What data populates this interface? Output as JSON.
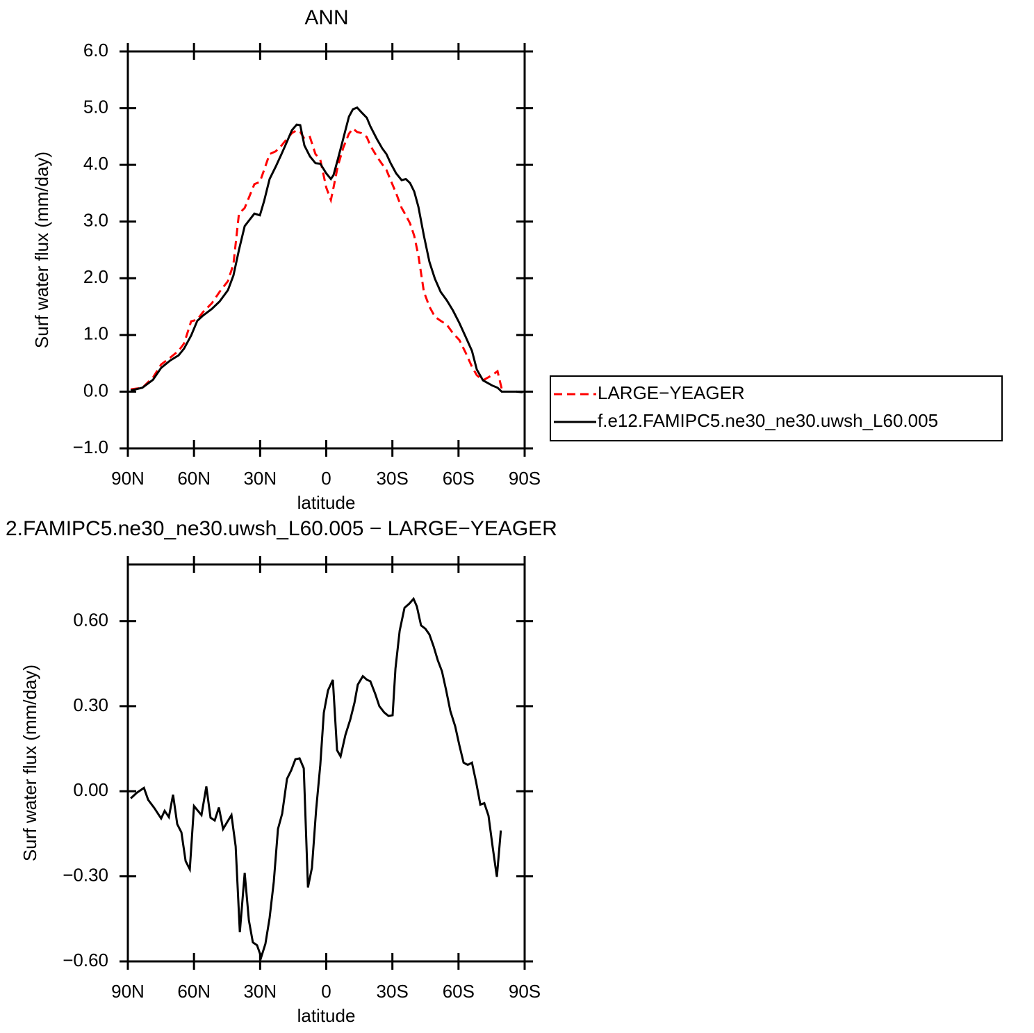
{
  "chart_data": [
    {
      "type": "line",
      "title": "ANN",
      "xlabel": "latitude",
      "ylabel": "Surf water flux (mm/day)",
      "legend": "right",
      "x": [
        88.7,
        83.4,
        78.6,
        74.9,
        70.8,
        67.0,
        64.5,
        61.3,
        58.5,
        56.0,
        51.9,
        48.4,
        44.6,
        42.1,
        39.6,
        37.0,
        32.6,
        30.1,
        28.2,
        25.7,
        22.9,
        20.3,
        17.8,
        15.6,
        13.4,
        11.8,
        9.9,
        7.4,
        4.9,
        2.7,
        0,
        -2.1,
        -3.3,
        -5.2,
        -7.7,
        -10.3,
        -12.1,
        -14.0,
        -15.9,
        -18.4,
        -20.0,
        -22.9,
        -25.4,
        -27.3,
        -29.2,
        -31.7,
        -34.2,
        -36.1,
        -38.0,
        -39.9,
        -41.8,
        -44.3,
        -46.8,
        -49.3,
        -51.9,
        -54.7,
        -57.5,
        -60.4,
        -63.2,
        -66.1,
        -68.3,
        -71.1,
        -75.2,
        -77.7,
        -79.6,
        -82.8,
        -86.2,
        -89.1
      ],
      "series": [
        {
          "name": "LARGE−YEAGER",
          "color": "#ff0000",
          "dashed": true,
          "values": [
            0.04,
            0.07,
            0.25,
            0.48,
            0.6,
            0.72,
            0.85,
            1.24,
            1.27,
            1.4,
            1.56,
            1.76,
            1.95,
            2.25,
            3.14,
            3.24,
            3.66,
            3.7,
            3.91,
            4.19,
            4.24,
            4.34,
            4.46,
            4.56,
            4.61,
            4.58,
            4.46,
            4.49,
            4.19,
            4.09,
            3.6,
            3.38,
            3.6,
            3.97,
            4.3,
            4.55,
            4.64,
            4.58,
            4.56,
            4.49,
            4.34,
            4.15,
            4.01,
            3.91,
            3.73,
            3.5,
            3.24,
            3.11,
            2.97,
            2.75,
            2.4,
            1.76,
            1.5,
            1.32,
            1.25,
            1.18,
            1.03,
            0.91,
            0.69,
            0.44,
            0.29,
            0.2,
            0.29,
            0.36,
            0.05,
            null,
            null,
            null
          ]
        },
        {
          "name": "f.e12.FAMIPC5.ne30_ne30.uwsh_L60.005",
          "color": "#000000",
          "dashed": false,
          "values": [
            0.02,
            0.07,
            0.21,
            0.42,
            0.55,
            0.64,
            0.76,
            0.99,
            1.25,
            1.34,
            1.46,
            1.59,
            1.79,
            2.05,
            2.5,
            2.92,
            3.14,
            3.11,
            3.36,
            3.75,
            3.97,
            4.19,
            4.41,
            4.61,
            4.71,
            4.7,
            4.34,
            4.15,
            4.03,
            4.02,
            3.85,
            3.75,
            3.82,
            4.09,
            4.46,
            4.85,
            4.98,
            5.01,
            4.93,
            4.83,
            4.68,
            4.46,
            4.29,
            4.19,
            4.03,
            3.85,
            3.73,
            3.75,
            3.68,
            3.53,
            3.26,
            2.75,
            2.29,
            1.99,
            1.76,
            1.61,
            1.43,
            1.21,
            0.97,
            0.72,
            0.39,
            0.2,
            0.11,
            0.07,
            0.0,
            0.0,
            0.0,
            -0.01
          ]
        }
      ],
      "xlim": [
        90,
        -90
      ],
      "xticks": [
        {
          "value": 90,
          "label": "90N"
        },
        {
          "value": 60,
          "label": "60N"
        },
        {
          "value": 30,
          "label": "30N"
        },
        0,
        {
          "value": -30,
          "label": "30S"
        },
        {
          "value": -60,
          "label": "60S"
        },
        {
          "value": -90,
          "label": "90S"
        }
      ],
      "ylim": [
        -1,
        6
      ],
      "yticks": [
        {
          "value": -1,
          "label": "−1.0"
        },
        {
          "value": 0,
          "label": "0.0"
        },
        {
          "value": 1,
          "label": "1.0"
        },
        {
          "value": 2,
          "label": "2.0"
        },
        {
          "value": 3,
          "label": "3.0"
        },
        {
          "value": 4,
          "label": "4.0"
        },
        {
          "value": 5,
          "label": "5.0"
        },
        {
          "value": 6,
          "label": "6.0"
        }
      ]
    },
    {
      "type": "line",
      "title": "2.FAMIPC5.ne30_ne30.uwsh_L60.005 − LARGE−YEAGER",
      "xlabel": "latitude",
      "ylabel": "Surf water flux (mm/day)",
      "color": "#000000",
      "x": [
        88.7,
        85.9,
        82.7,
        80.8,
        78.0,
        74.9,
        73.3,
        71.4,
        69.5,
        67.6,
        65.7,
        63.8,
        61.9,
        60.0,
        56.6,
        54.4,
        52.5,
        50.6,
        48.7,
        46.8,
        44.9,
        43.0,
        41.1,
        39.2,
        37.0,
        35.1,
        33.3,
        31.4,
        29.5,
        27.6,
        25.7,
        23.8,
        21.9,
        20.0,
        17.8,
        15.9,
        14.0,
        12.1,
        10.2,
        8.3,
        6.5,
        4.6,
        2.7,
        1.1,
        -0.8,
        -3.0,
        -4.9,
        -6.5,
        -8.7,
        -10.9,
        -12.8,
        -14.3,
        -16.6,
        -18.5,
        -20.0,
        -22.2,
        -24.1,
        -26.3,
        -28.2,
        -30.1,
        -31.4,
        -33.3,
        -35.5,
        -37.7,
        -39.6,
        -41.1,
        -43.0,
        -45.0,
        -46.8,
        -48.7,
        -50.6,
        -52.5,
        -54.4,
        -56.3,
        -58.5,
        -60.4,
        -62.3,
        -64.2,
        -66.1,
        -68.0,
        -69.9,
        -71.7,
        -73.6,
        -75.5,
        -77.4,
        -79.2
      ],
      "values": [
        -0.025,
        -0.005,
        0.012,
        -0.03,
        -0.059,
        -0.096,
        -0.069,
        -0.091,
        -0.012,
        -0.116,
        -0.145,
        -0.246,
        -0.275,
        -0.052,
        -0.084,
        0.017,
        -0.093,
        -0.103,
        -0.057,
        -0.133,
        -0.108,
        -0.084,
        -0.194,
        -0.497,
        -0.288,
        -0.455,
        -0.533,
        -0.543,
        -0.585,
        -0.538,
        -0.447,
        -0.319,
        -0.133,
        -0.079,
        0.044,
        0.074,
        0.113,
        0.116,
        0.081,
        -0.339,
        -0.27,
        -0.066,
        0.093,
        0.277,
        0.356,
        0.393,
        0.145,
        0.123,
        0.199,
        0.253,
        0.312,
        0.376,
        0.406,
        0.393,
        0.388,
        0.344,
        0.3,
        0.278,
        0.266,
        0.268,
        0.433,
        0.566,
        0.647,
        0.662,
        0.679,
        0.652,
        0.585,
        0.573,
        0.553,
        0.511,
        0.462,
        0.423,
        0.356,
        0.283,
        0.229,
        0.162,
        0.101,
        0.093,
        0.101,
        0.032,
        -0.047,
        -0.042,
        -0.086,
        -0.197,
        -0.302,
        -0.138
      ],
      "xlim": [
        90,
        -90
      ],
      "xticks": [
        {
          "value": 90,
          "label": "90N"
        },
        {
          "value": 60,
          "label": "60N"
        },
        {
          "value": 30,
          "label": "30N"
        },
        0,
        {
          "value": -30,
          "label": "30S"
        },
        {
          "value": -60,
          "label": "60S"
        },
        {
          "value": -90,
          "label": "90S"
        }
      ],
      "ylim": [
        -0.6,
        0.8
      ],
      "yticks": [
        {
          "value": -0.6,
          "label": "−0.60"
        },
        {
          "value": -0.3,
          "label": "−0.30"
        },
        {
          "value": 0,
          "label": "0.00"
        },
        {
          "value": 0.3,
          "label": "0.30"
        },
        {
          "value": 0.6,
          "label": "0.60"
        }
      ]
    }
  ]
}
